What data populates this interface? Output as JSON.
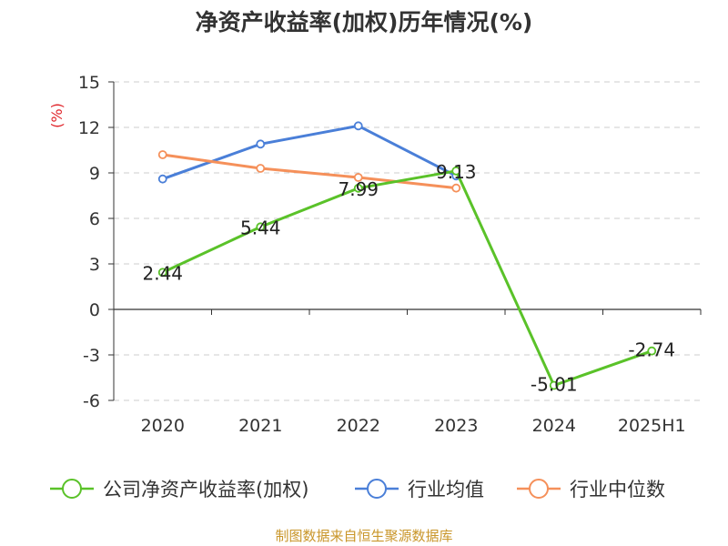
{
  "chart_data": {
    "type": "line",
    "title": "净资产收益率(加权)历年情况(%)",
    "ylabel": "(%)",
    "categories": [
      "2020",
      "2021",
      "2022",
      "2023",
      "2024",
      "2025H1"
    ],
    "ylim": [
      -6,
      15
    ],
    "yticks": [
      15,
      12,
      9,
      6,
      3,
      0,
      -3,
      -6
    ],
    "grid": true,
    "legend_position": "bottom",
    "series": [
      {
        "name": "公司净资产收益率(加权)",
        "color": "#5ac229",
        "values": [
          2.44,
          5.44,
          7.99,
          9.13,
          -5.01,
          -2.74
        ],
        "labels": [
          "2.44",
          "5.44",
          "7.99",
          "9.13",
          "-5.01",
          "-2.74"
        ]
      },
      {
        "name": "行业均值",
        "color": "#4a7fd8",
        "values": [
          8.6,
          10.9,
          12.1,
          8.8,
          null,
          null
        ]
      },
      {
        "name": "行业中位数",
        "color": "#f5905a",
        "values": [
          10.2,
          9.3,
          8.7,
          8.0,
          null,
          null
        ]
      }
    ]
  },
  "source": "制图数据来自恒生聚源数据库"
}
